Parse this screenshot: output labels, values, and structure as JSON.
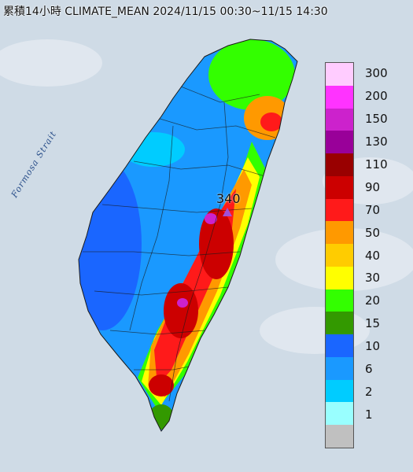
{
  "map": {
    "title": "累積14小時 CLIMATE_MEAN 2024/11/15 00:30~11/15 14:30",
    "strait_label": "Formosa Strait",
    "peak_value": "340"
  },
  "legend": {
    "title": "",
    "items": [
      {
        "label": "300",
        "color": "#ffccff"
      },
      {
        "label": "200",
        "color": "#ff33ff"
      },
      {
        "label": "150",
        "color": "#cc22cc"
      },
      {
        "label": "130",
        "color": "#990099"
      },
      {
        "label": "110",
        "color": "#990000"
      },
      {
        "label": "90",
        "color": "#cc0000"
      },
      {
        "label": "70",
        "color": "#ff1a1a"
      },
      {
        "label": "50",
        "color": "#ff9900"
      },
      {
        "label": "40",
        "color": "#ffcc00"
      },
      {
        "label": "30",
        "color": "#ffff00"
      },
      {
        "label": "20",
        "color": "#33ff00"
      },
      {
        "label": "15",
        "color": "#339900"
      },
      {
        "label": "10",
        "color": "#1a66ff"
      },
      {
        "label": "6",
        "color": "#1a99ff"
      },
      {
        "label": "2",
        "color": "#00ccff"
      },
      {
        "label": "1",
        "color": "#99ffff"
      },
      {
        "label": "",
        "color": "#c0c0c0"
      }
    ]
  }
}
